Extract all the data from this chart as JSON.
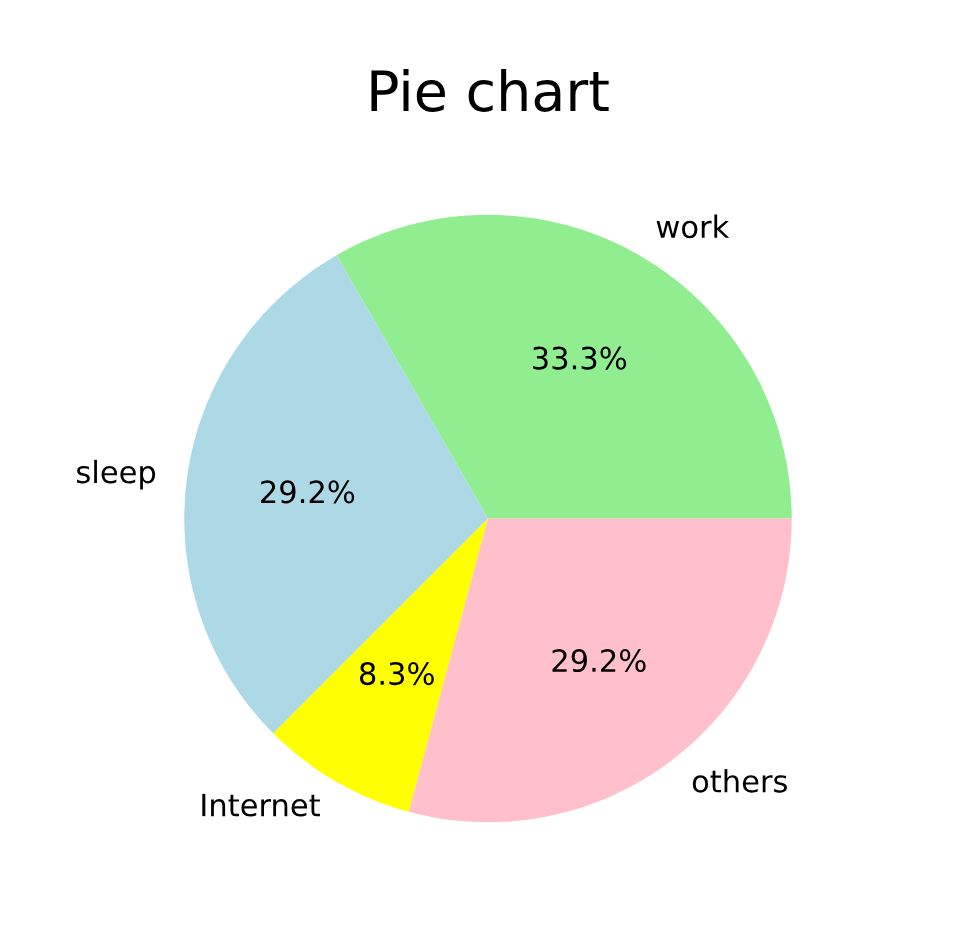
{
  "chart_data": {
    "type": "pie",
    "title": "Pie chart",
    "categories": [
      "work",
      "sleep",
      "Internet",
      "others"
    ],
    "values": [
      33.3,
      29.2,
      8.3,
      29.2
    ],
    "colors": [
      "#90ee90",
      "#add8e6",
      "#ffff00",
      "#ffc0cb"
    ],
    "value_labels": [
      "33.3%",
      "29.2%",
      "8.3%",
      "29.2%"
    ]
  }
}
